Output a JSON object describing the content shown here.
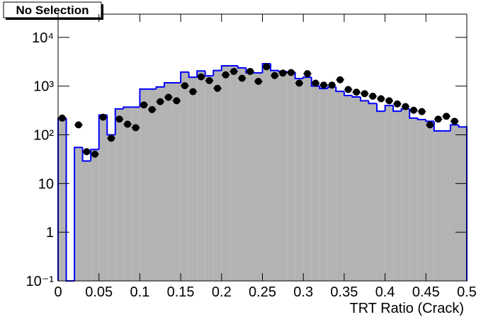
{
  "chart_data": {
    "type": "histogram",
    "title": "No Selection",
    "x_label": "TRT Ratio (Crack)",
    "bins": [
      0,
      0.01,
      0.02,
      0.03,
      0.04,
      0.05,
      0.06,
      0.07,
      0.08,
      0.09,
      0.1,
      0.11,
      0.12,
      0.13,
      0.14,
      0.15,
      0.16,
      0.17,
      0.18,
      0.19,
      0.2,
      0.21,
      0.22,
      0.23,
      0.24,
      0.25,
      0.26,
      0.27,
      0.28,
      0.29,
      0.3,
      0.31,
      0.32,
      0.33,
      0.34,
      0.35,
      0.36,
      0.37,
      0.38,
      0.39,
      0.4,
      0.41,
      0.42,
      0.43,
      0.44,
      0.45,
      0.46,
      0.47,
      0.48,
      0.49,
      0.5
    ],
    "series": [
      {
        "style": "filled-step",
        "color": "#0000ff",
        "fill": "#b3b3b3",
        "values": [
          220,
          0,
          55,
          29,
          50,
          255,
          100,
          340,
          370,
          370,
          870,
          870,
          960,
          1170,
          1170,
          1940,
          1520,
          2050,
          1630,
          2090,
          2610,
          2610,
          2370,
          1870,
          1870,
          2880,
          2090,
          2000,
          1940,
          1430,
          1520,
          1000,
          890,
          960,
          780,
          640,
          600,
          500,
          440,
          305,
          400,
          305,
          340,
          220,
          205,
          190,
          120,
          120,
          160,
          145
        ]
      },
      {
        "style": "markers",
        "color": "#000000",
        "values": [
          220,
          null,
          160,
          45,
          40,
          230,
          85,
          210,
          165,
          140,
          410,
          330,
          480,
          590,
          500,
          1020,
          770,
          1550,
          1300,
          900,
          1700,
          2000,
          1450,
          2000,
          1250,
          2500,
          1650,
          1850,
          1900,
          1150,
          1800,
          1150,
          1050,
          1050,
          1350,
          850,
          750,
          700,
          620,
          550,
          500,
          430,
          380,
          320,
          300,
          160,
          210,
          240,
          190,
          null
        ]
      }
    ],
    "xlim": [
      0,
      0.5
    ],
    "xticks": [
      0,
      0.05,
      0.1,
      0.15,
      0.2,
      0.25,
      0.3,
      0.35,
      0.4,
      0.45,
      0.5
    ],
    "ylim": [
      0.1,
      30000
    ],
    "ylog": true,
    "yticks": [
      {
        "value": 0.1,
        "label": "10⁻¹"
      },
      1,
      10,
      {
        "value": 100,
        "label": "10²"
      },
      {
        "value": 1000,
        "label": "10³"
      },
      {
        "value": 10000,
        "label": "10⁴"
      }
    ]
  }
}
